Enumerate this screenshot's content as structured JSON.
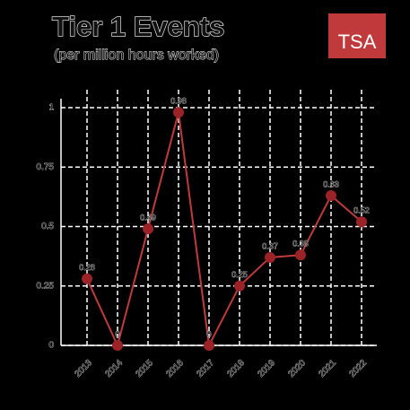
{
  "chart_data": {
    "type": "line",
    "title": "Tier 1 Events",
    "subtitle": "(per million hours worked)",
    "logo": "TSA",
    "categories": [
      "2013",
      "2014",
      "2015",
      "2016",
      "2017",
      "2018",
      "2019",
      "2020",
      "2021",
      "2022"
    ],
    "values": [
      0.28,
      0,
      0.49,
      0.98,
      0,
      0.25,
      0.37,
      0.38,
      0.63,
      0.52
    ],
    "color": "#c0393b",
    "marker_color": "#9b2226",
    "ylim": [
      0,
      1
    ],
    "yticks": [
      0,
      0.25,
      0.5,
      0.75,
      1
    ],
    "grid": true
  }
}
